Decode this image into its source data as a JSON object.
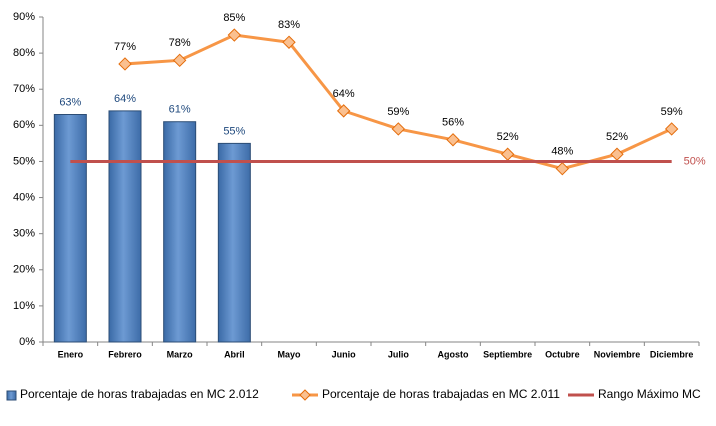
{
  "chart_data": {
    "type": "bar-line",
    "categories": [
      "Enero",
      "Febrero",
      "Marzo",
      "Abril",
      "Mayo",
      "Junio",
      "Julio",
      "Agosto",
      "Septiembre",
      "Octubre",
      "Noviembre",
      "Diciembre"
    ],
    "series": [
      {
        "name": "Porcentaje de horas trabajadas en MC 2.012",
        "type": "bar",
        "color": "#4f81bd",
        "values": [
          63,
          64,
          61,
          55,
          null,
          null,
          null,
          null,
          null,
          null,
          null,
          null
        ],
        "value_labels": [
          "63%",
          "64%",
          "61%",
          "55%",
          null,
          null,
          null,
          null,
          null,
          null,
          null,
          null
        ]
      },
      {
        "name": "Porcentaje de horas trabajadas en MC 2.011",
        "type": "line",
        "color": "#f79646",
        "values": [
          null,
          77,
          78,
          85,
          83,
          64,
          59,
          56,
          52,
          48,
          52,
          59
        ],
        "value_labels": [
          null,
          "77%",
          "78%",
          "85%",
          "83%",
          "64%",
          "59%",
          "56%",
          "52%",
          "48%",
          "52%",
          "59%"
        ]
      },
      {
        "name": "Rango Máximo MC",
        "type": "line",
        "color": "#c0504d",
        "values": [
          50,
          50,
          50,
          50,
          50,
          50,
          50,
          50,
          50,
          50,
          50,
          50
        ],
        "value_labels": [
          null,
          null,
          null,
          null,
          null,
          null,
          null,
          null,
          null,
          null,
          null,
          "50%"
        ]
      }
    ],
    "ylim": [
      0,
      90
    ],
    "yticks": [
      {
        "value": 0,
        "label": "0%"
      },
      {
        "value": 10,
        "label": "10%"
      },
      {
        "value": 20,
        "label": "20%"
      },
      {
        "value": 30,
        "label": "30%"
      },
      {
        "value": 40,
        "label": "40%"
      },
      {
        "value": 50,
        "label": "50%"
      },
      {
        "value": 60,
        "label": "60%"
      },
      {
        "value": 70,
        "label": "70%"
      },
      {
        "value": 80,
        "label": "80%"
      },
      {
        "value": 90,
        "label": "90%"
      }
    ],
    "legend": "bottom"
  }
}
